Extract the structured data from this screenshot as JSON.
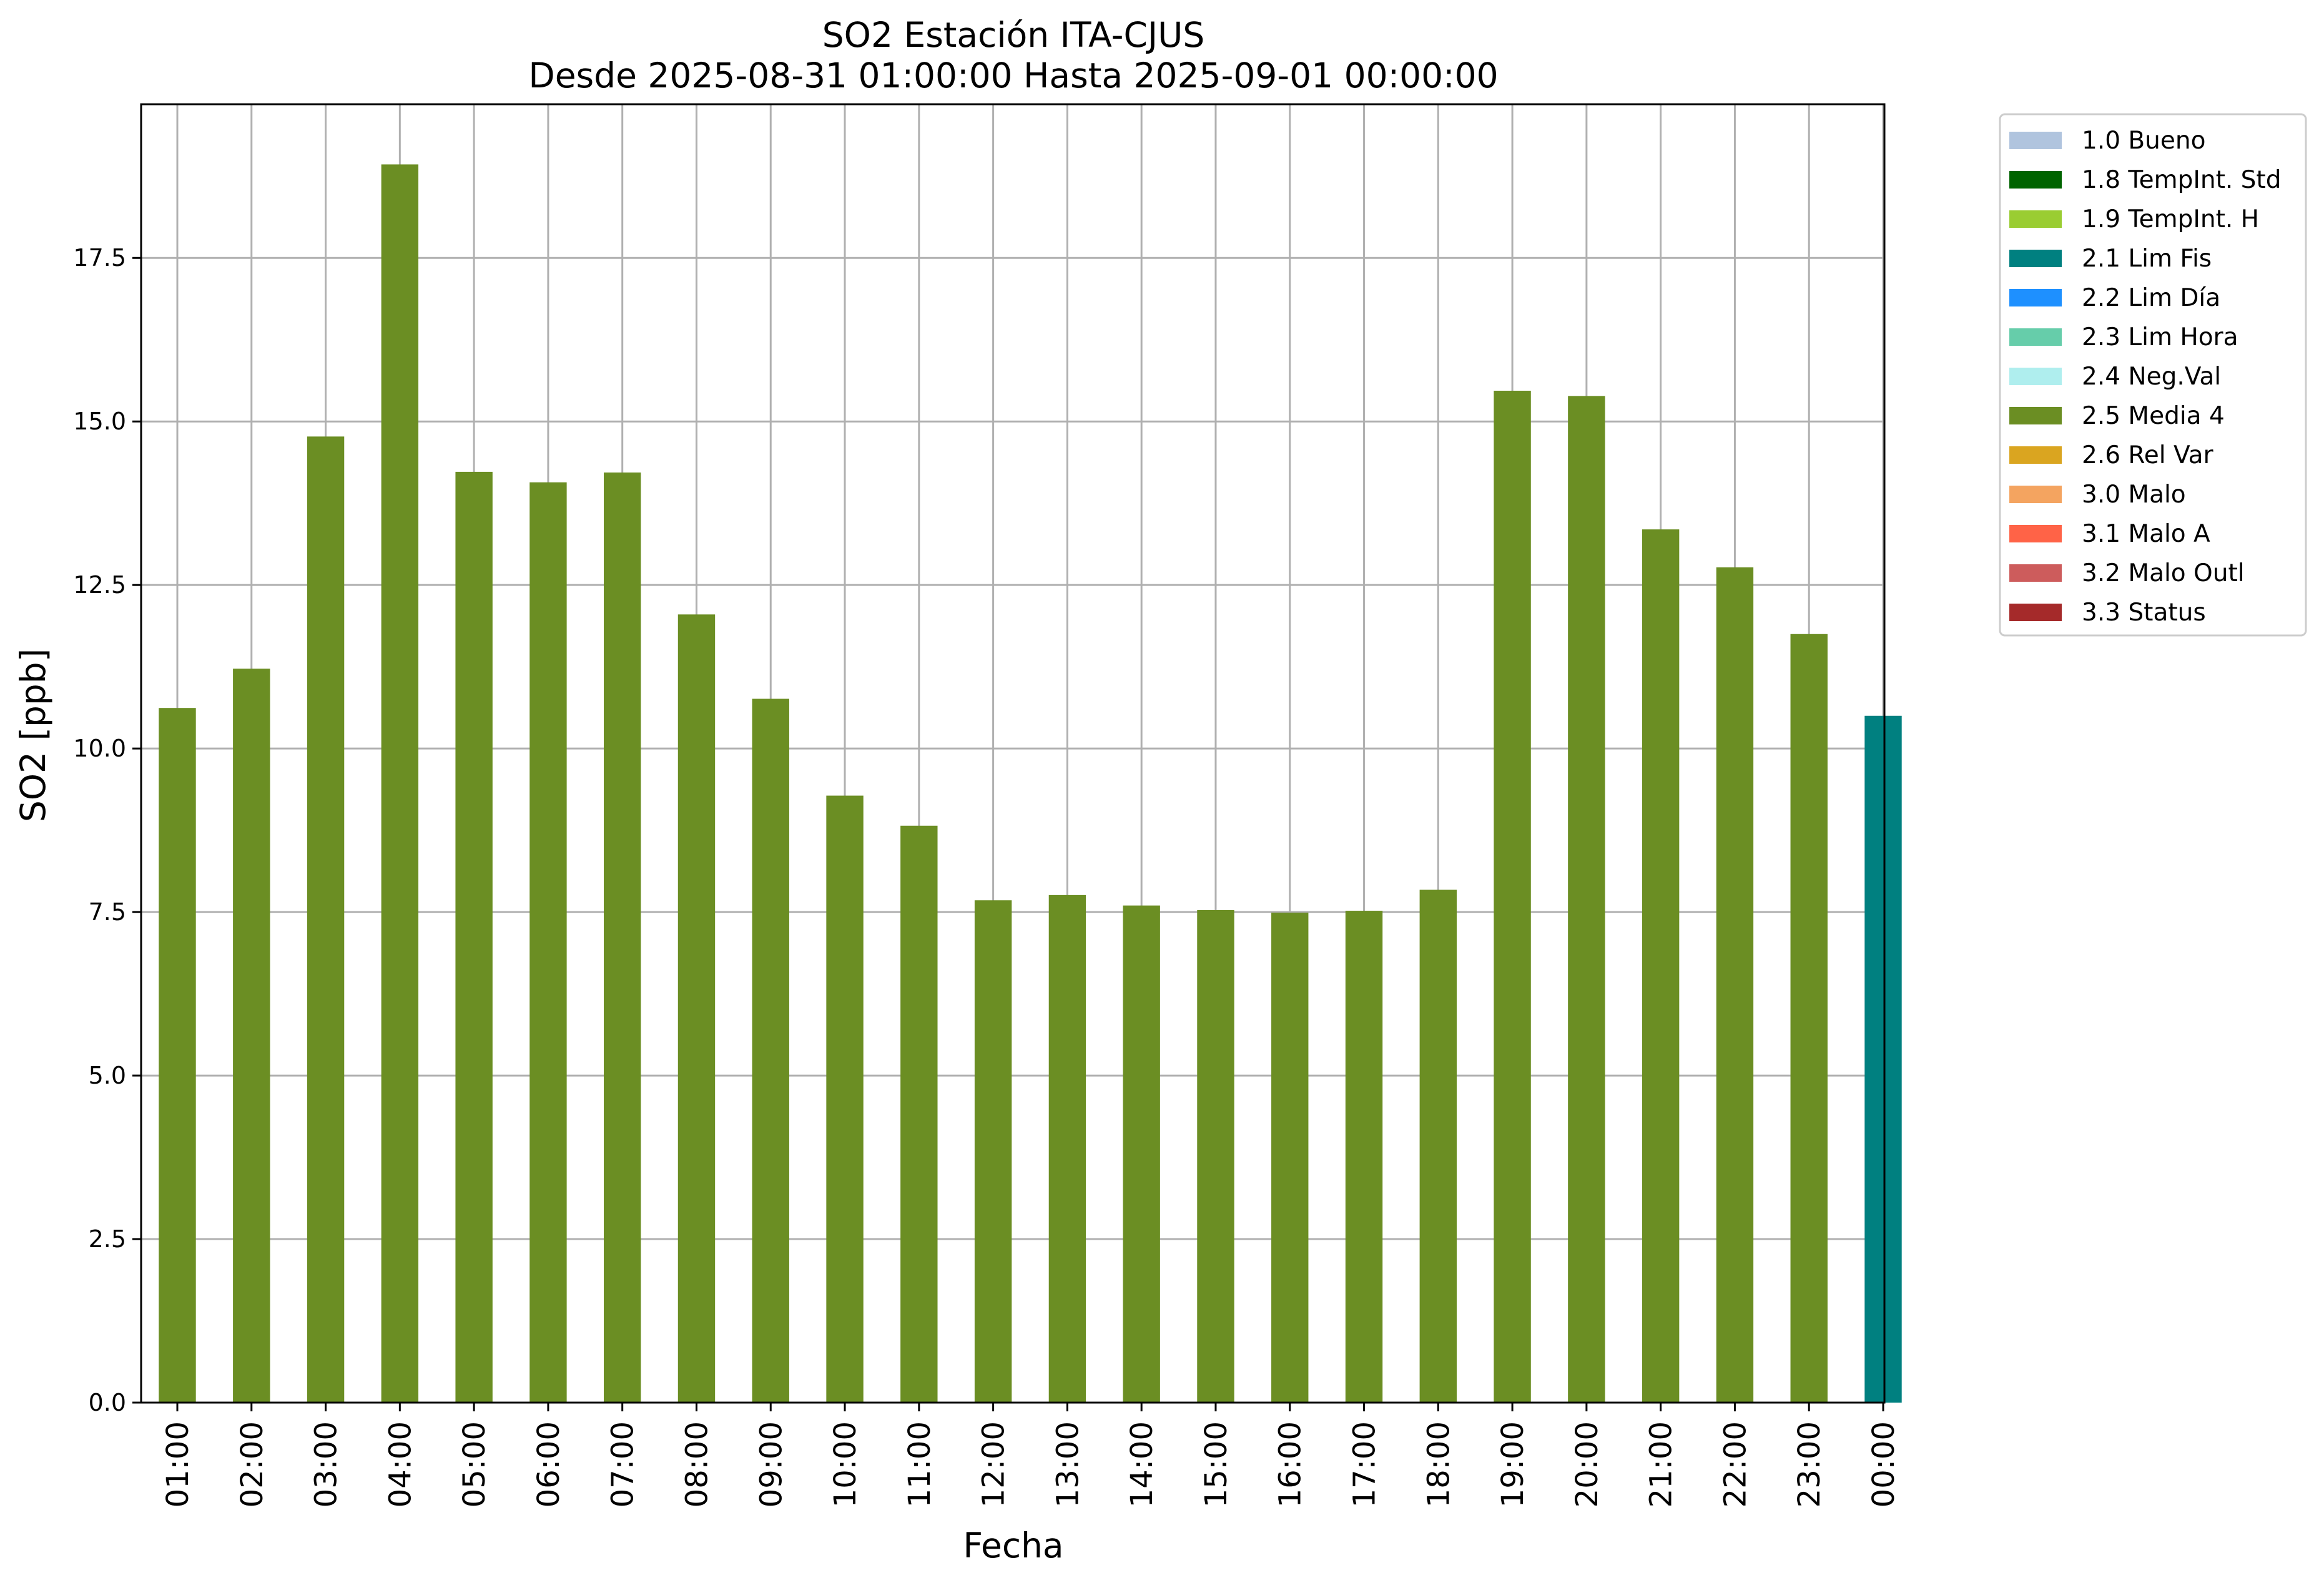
{
  "chart_data": {
    "type": "bar",
    "title": "SO2 Estación ITA-CJUS",
    "subtitle": "Desde 2025-08-31 01:00:00 Hasta 2025-09-01 00:00:00",
    "xlabel": "Fecha",
    "ylabel": "SO2 [ppb]",
    "ylim": [
      0,
      19.85
    ],
    "yticks": [
      "0.0",
      "2.5",
      "5.0",
      "7.5",
      "10.0",
      "12.5",
      "15.0",
      "17.5"
    ],
    "grid": true,
    "legend_position": "outside-top-right",
    "categories": [
      "01:00",
      "02:00",
      "03:00",
      "04:00",
      "05:00",
      "06:00",
      "07:00",
      "08:00",
      "09:00",
      "10:00",
      "11:00",
      "12:00",
      "13:00",
      "14:00",
      "15:00",
      "16:00",
      "17:00",
      "18:00",
      "19:00",
      "20:00",
      "21:00",
      "22:00",
      "23:00",
      "00:00"
    ],
    "values": [
      10.62,
      11.22,
      14.77,
      18.93,
      14.23,
      14.07,
      14.22,
      12.05,
      10.76,
      9.28,
      8.82,
      7.68,
      7.76,
      7.6,
      7.53,
      7.49,
      7.52,
      7.84,
      15.47,
      15.39,
      13.35,
      12.77,
      11.75,
      10.5
    ],
    "flags": [
      "2.5 Media 4",
      "2.5 Media 4",
      "2.5 Media 4",
      "2.5 Media 4",
      "2.5 Media 4",
      "2.5 Media 4",
      "2.5 Media 4",
      "2.5 Media 4",
      "2.5 Media 4",
      "2.5 Media 4",
      "2.5 Media 4",
      "2.5 Media 4",
      "2.5 Media 4",
      "2.5 Media 4",
      "2.5 Media 4",
      "2.5 Media 4",
      "2.5 Media 4",
      "2.5 Media 4",
      "2.5 Media 4",
      "2.5 Media 4",
      "2.5 Media 4",
      "2.5 Media 4",
      "2.5 Media 4",
      "2.1 Lim Fis"
    ],
    "legend": [
      {
        "label": "1.0 Bueno",
        "color": "#b0c4de"
      },
      {
        "label": "1.8 TempInt. Std",
        "color": "#006400"
      },
      {
        "label": "1.9 TempInt. H",
        "color": "#9acd32"
      },
      {
        "label": "2.1 Lim Fis",
        "color": "#008080"
      },
      {
        "label": "2.2 Lim Día",
        "color": "#1e90ff"
      },
      {
        "label": "2.3 Lim Hora",
        "color": "#66cdaa"
      },
      {
        "label": "2.4 Neg.Val",
        "color": "#afeeee"
      },
      {
        "label": "2.5 Media 4",
        "color": "#6b8e23"
      },
      {
        "label": "2.6 Rel Var",
        "color": "#daa520"
      },
      {
        "label": "3.0 Malo",
        "color": "#f4a460"
      },
      {
        "label": "3.1 Malo A",
        "color": "#ff6347"
      },
      {
        "label": "3.2 Malo Outl",
        "color": "#cd5c5c"
      },
      {
        "label": "3.3 Status",
        "color": "#a52a2a"
      }
    ]
  }
}
